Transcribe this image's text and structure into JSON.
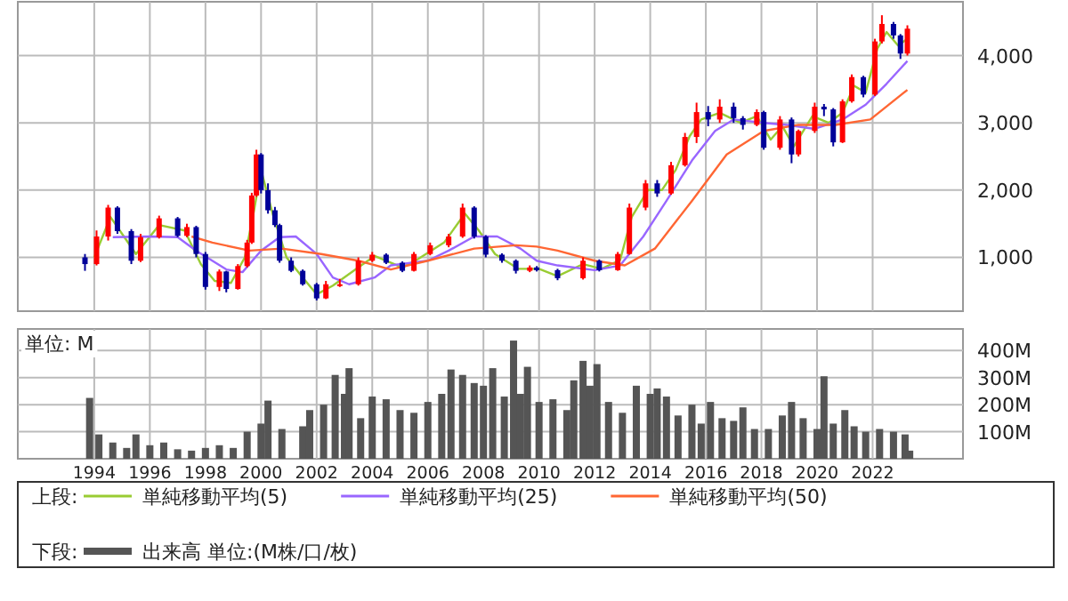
{
  "chart_data": [
    {
      "type": "candlestick",
      "legend_title": "上段:",
      "legend": "bottom",
      "grid": true,
      "tick_labels": "y",
      "xlim": [
        "1991-04",
        "2025-04"
      ],
      "xticks": [
        {
          "value": "1994",
          "label": null
        },
        {
          "value": "1996",
          "label": null
        },
        {
          "value": "1998",
          "label": null
        },
        {
          "value": "2000",
          "label": null
        },
        {
          "value": "2002",
          "label": null
        },
        {
          "value": "2004",
          "label": null
        },
        {
          "value": "2006",
          "label": null
        },
        {
          "value": "2008",
          "label": null
        },
        {
          "value": "2010",
          "label": null
        },
        {
          "value": "2012",
          "label": null
        },
        {
          "value": "2014",
          "label": null
        },
        {
          "value": "2016",
          "label": null
        },
        {
          "value": "2018",
          "label": null
        },
        {
          "value": "2020",
          "label": null
        },
        {
          "value": "2022",
          "label": null
        }
      ],
      "ylim": [
        200,
        4800
      ],
      "yticks": [
        {
          "value": 1000,
          "label": "1,000"
        },
        {
          "value": 2000,
          "label": "2,000"
        },
        {
          "value": 3000,
          "label": "3,000"
        },
        {
          "value": 4000,
          "label": "4,000"
        }
      ],
      "x": [
        "1993-09",
        "1994-02",
        "1994-07",
        "1994-11",
        "1995-05",
        "1995-09",
        "1996-05",
        "1997-01",
        "1997-05",
        "1997-09",
        "1998-01",
        "1998-07",
        "1998-10",
        "1999-03",
        "1999-07",
        "1999-09",
        "1999-11",
        "2000-01",
        "2000-04",
        "2000-07",
        "2000-09",
        "2001-02",
        "2001-07",
        "2002-01",
        "2002-05",
        "2002-11",
        "2003-07",
        "2004-01",
        "2004-07",
        "2005-02",
        "2005-07",
        "2006-02",
        "2006-10",
        "2007-04",
        "2007-09",
        "2008-02",
        "2008-09",
        "2009-03",
        "2009-09",
        "2009-12",
        "2010-09",
        "2011-08",
        "2012-03",
        "2012-11",
        "2013-04",
        "2013-11",
        "2014-04",
        "2014-10",
        "2015-04",
        "2015-09",
        "2016-02",
        "2016-07",
        "2017-01",
        "2017-05",
        "2017-11",
        "2018-02",
        "2018-09",
        "2019-02",
        "2019-05",
        "2019-12",
        "2020-04",
        "2020-08",
        "2020-12",
        "2021-04",
        "2021-09",
        "2022-02",
        "2022-05",
        "2022-10",
        "2023-01",
        "2023-04"
      ],
      "ohlc": [
        [
          1000,
          1050,
          800,
          900
        ],
        [
          900,
          1400,
          880,
          1310
        ],
        [
          1310,
          1780,
          1250,
          1740
        ],
        [
          1740,
          1760,
          1350,
          1390
        ],
        [
          1390,
          1420,
          900,
          950
        ],
        [
          950,
          1350,
          930,
          1300
        ],
        [
          1300,
          1620,
          1280,
          1580
        ],
        [
          1580,
          1600,
          1300,
          1320
        ],
        [
          1320,
          1500,
          1300,
          1450
        ],
        [
          1450,
          1470,
          1000,
          1050
        ],
        [
          1050,
          1080,
          520,
          560
        ],
        [
          560,
          820,
          500,
          790
        ],
        [
          790,
          800,
          480,
          530
        ],
        [
          530,
          900,
          520,
          870
        ],
        [
          870,
          1260,
          850,
          1220
        ],
        [
          1220,
          1960,
          1200,
          1920
        ],
        [
          1920,
          2600,
          1900,
          2530
        ],
        [
          2530,
          2550,
          1950,
          2000
        ],
        [
          2000,
          2100,
          1650,
          1700
        ],
        [
          1700,
          1750,
          1450,
          1480
        ],
        [
          1480,
          1500,
          920,
          950
        ],
        [
          950,
          1000,
          780,
          800
        ],
        [
          800,
          820,
          580,
          600
        ],
        [
          600,
          620,
          360,
          390
        ],
        [
          390,
          650,
          380,
          600
        ],
        [
          600,
          680,
          560,
          600
        ],
        [
          600,
          1000,
          580,
          950
        ],
        [
          950,
          1080,
          930,
          1040
        ],
        [
          1040,
          1060,
          900,
          920
        ],
        [
          920,
          940,
          780,
          800
        ],
        [
          800,
          1080,
          790,
          1050
        ],
        [
          1050,
          1220,
          1030,
          1180
        ],
        [
          1180,
          1350,
          1150,
          1310
        ],
        [
          1310,
          1800,
          1290,
          1740
        ],
        [
          1740,
          1760,
          1280,
          1310
        ],
        [
          1310,
          1330,
          1000,
          1040
        ],
        [
          1040,
          1060,
          920,
          950
        ],
        [
          950,
          970,
          760,
          800
        ],
        [
          800,
          880,
          780,
          850
        ],
        [
          850,
          870,
          790,
          810
        ],
        [
          810,
          830,
          660,
          690
        ],
        [
          690,
          1000,
          670,
          950
        ],
        [
          950,
          970,
          790,
          810
        ],
        [
          810,
          1080,
          800,
          1050
        ],
        [
          1050,
          1800,
          1040,
          1740
        ],
        [
          1740,
          2150,
          1700,
          2100
        ],
        [
          2100,
          2150,
          1900,
          1950
        ],
        [
          1950,
          2420,
          1930,
          2370
        ],
        [
          2370,
          2850,
          2350,
          2790
        ],
        [
          2790,
          3300,
          2700,
          3160
        ],
        [
          3160,
          3250,
          2950,
          3050
        ],
        [
          3050,
          3350,
          3000,
          3240
        ],
        [
          3240,
          3300,
          3000,
          3070
        ],
        [
          3070,
          3100,
          2900,
          2970
        ],
        [
          2970,
          3200,
          2950,
          3160
        ],
        [
          3160,
          3180,
          2600,
          2630
        ],
        [
          2630,
          3100,
          2600,
          3050
        ],
        [
          3050,
          3080,
          2400,
          2530
        ],
        [
          2530,
          2900,
          2500,
          2880
        ],
        [
          2880,
          3300,
          2850,
          3240
        ],
        [
          3240,
          3280,
          3100,
          3200
        ],
        [
          3200,
          3220,
          2650,
          2710
        ],
        [
          2710,
          3350,
          2700,
          3320
        ],
        [
          3320,
          3720,
          3300,
          3680
        ],
        [
          3680,
          3700,
          3380,
          3420
        ],
        [
          3420,
          4250,
          3400,
          4210
        ],
        [
          4210,
          4600,
          4180,
          4470
        ],
        [
          4470,
          4500,
          4250,
          4300
        ],
        [
          4300,
          4320,
          3950,
          4030
        ],
        [
          4030,
          4450,
          4000,
          4400
        ]
      ],
      "series": [
        {
          "type": "line",
          "name": "単純移動平均(5)",
          "color": "#99cc33",
          "x": [
            "1994-01",
            "1994-08",
            "1995-02",
            "1995-07",
            "1996-05",
            "1997-04",
            "1997-11",
            "1998-05",
            "1998-12",
            "1999-06",
            "1999-10",
            "2000-01",
            "2000-06",
            "2000-12",
            "2001-07",
            "2002-01",
            "2002-08",
            "2003-07",
            "2004-02",
            "2005-02",
            "2005-09",
            "2006-08",
            "2007-05",
            "2007-11",
            "2008-06",
            "2009-04",
            "2010-01",
            "2010-09",
            "2011-08",
            "2012-04",
            "2012-12",
            "2013-05",
            "2013-12",
            "2014-06",
            "2014-12",
            "2015-06",
            "2015-11",
            "2016-07",
            "2017-04",
            "2017-11",
            "2018-05",
            "2018-10",
            "2019-03",
            "2019-11",
            "2020-06",
            "2020-12",
            "2021-05",
            "2021-10",
            "2022-03",
            "2022-07",
            "2022-12",
            "2023-04"
          ],
          "values": [
            1000,
            1600,
            1300,
            1050,
            1480,
            1400,
            900,
            650,
            620,
            1000,
            1700,
            2300,
            1650,
            1000,
            700,
            450,
            580,
            850,
            1020,
            850,
            980,
            1220,
            1650,
            1400,
            1050,
            830,
            830,
            720,
            900,
            830,
            960,
            1600,
            2000,
            2000,
            2300,
            2800,
            3050,
            3150,
            3000,
            3100,
            2750,
            2950,
            2650,
            3100,
            3000,
            3150,
            3550,
            3450,
            4100,
            4350,
            4150,
            4250
          ]
        },
        {
          "type": "line",
          "name": "単純移動平均(25)",
          "color": "#9966ff",
          "x": [
            "1994-09",
            "1996-01",
            "1997-01",
            "1997-09",
            "1998-10",
            "1999-05",
            "2000-01",
            "2000-09",
            "2001-04",
            "2002-01",
            "2002-08",
            "2003-03",
            "2004-02",
            "2004-09",
            "2006-01",
            "2006-10",
            "2007-09",
            "2008-07",
            "2009-05",
            "2009-12",
            "2010-09",
            "2012-01",
            "2012-12",
            "2013-10",
            "2014-08",
            "2015-07",
            "2016-05",
            "2017-01",
            "2018-02",
            "2018-12",
            "2019-12",
            "2020-12",
            "2021-10",
            "2022-07",
            "2023-04"
          ],
          "values": [
            1300,
            1310,
            1300,
            1100,
            820,
            780,
            1100,
            1300,
            1310,
            1050,
            700,
            600,
            700,
            880,
            950,
            1100,
            1310,
            1310,
            1130,
            950,
            880,
            810,
            880,
            1310,
            1840,
            2440,
            2880,
            3050,
            3000,
            2970,
            2910,
            3050,
            3270,
            3580,
            3920
          ]
        },
        {
          "type": "line",
          "name": "単純移動平均(50)",
          "color": "#ff6633",
          "x": [
            "1997-07",
            "1998-04",
            "1999-08",
            "2000-10",
            "2002-03",
            "2003-07",
            "2004-09",
            "2006-01",
            "2007-09",
            "2009-03",
            "2009-12",
            "2010-09",
            "2012-01",
            "2013-02",
            "2014-03",
            "2015-07",
            "2016-10",
            "2018-02",
            "2019-05",
            "2020-09",
            "2021-12",
            "2023-04"
          ],
          "values": [
            1310,
            1220,
            1100,
            1130,
            1050,
            950,
            820,
            950,
            1130,
            1180,
            1160,
            1100,
            950,
            880,
            1130,
            1840,
            2530,
            2880,
            2970,
            2970,
            3050,
            3490
          ]
        }
      ]
    },
    {
      "type": "bar",
      "legend_title": "下段:",
      "legend": "bottom",
      "grid": true,
      "ylabel": "単位: M",
      "xlim": [
        "1991-04",
        "2025-04"
      ],
      "xticks": [
        "1994",
        "1996",
        "1998",
        "2000",
        "2002",
        "2004",
        "2006",
        "2008",
        "2010",
        "2012",
        "2014",
        "2016",
        "2018",
        "2020",
        "2022"
      ],
      "ylim": [
        0,
        480
      ],
      "yticks": [
        {
          "value": 100,
          "label": "100M"
        },
        {
          "value": 200,
          "label": "200M"
        },
        {
          "value": 300,
          "label": "300M"
        },
        {
          "value": 400,
          "label": "400M"
        }
      ],
      "series": [
        {
          "name": "出来高 単位:(M株/口/枚)",
          "color": "#555555",
          "x": [
            "1993-11",
            "1994-03",
            "1994-09",
            "1995-03",
            "1995-07",
            "1996-01",
            "1996-07",
            "1997-01",
            "1997-07",
            "1998-01",
            "1998-07",
            "1999-01",
            "1999-07",
            "2000-01",
            "2000-04",
            "2000-10",
            "2001-07",
            "2001-10",
            "2002-04",
            "2002-09",
            "2003-01",
            "2003-03",
            "2003-08",
            "2004-01",
            "2004-07",
            "2005-01",
            "2005-07",
            "2006-01",
            "2006-07",
            "2006-11",
            "2007-04",
            "2007-09",
            "2008-01",
            "2008-05",
            "2008-10",
            "2009-02",
            "2009-05",
            "2009-08",
            "2010-01",
            "2010-07",
            "2011-01",
            "2011-04",
            "2011-08",
            "2011-11",
            "2012-02",
            "2012-07",
            "2013-01",
            "2013-07",
            "2014-01",
            "2014-04",
            "2014-08",
            "2015-01",
            "2015-07",
            "2015-11",
            "2016-03",
            "2016-08",
            "2017-01",
            "2017-05",
            "2017-10",
            "2018-04",
            "2018-10",
            "2019-02",
            "2019-07",
            "2020-01",
            "2020-04",
            "2020-08",
            "2021-01",
            "2021-05",
            "2021-10",
            "2022-04",
            "2022-10",
            "2023-03",
            "2023-05"
          ],
          "values": [
            225,
            90,
            60,
            40,
            90,
            50,
            60,
            35,
            30,
            40,
            50,
            40,
            100,
            130,
            215,
            110,
            120,
            180,
            200,
            310,
            240,
            335,
            150,
            230,
            220,
            180,
            170,
            210,
            240,
            330,
            310,
            280,
            270,
            335,
            230,
            437,
            240,
            340,
            210,
            220,
            180,
            290,
            362,
            270,
            350,
            210,
            170,
            270,
            240,
            260,
            230,
            160,
            200,
            130,
            210,
            150,
            140,
            190,
            110,
            110,
            160,
            210,
            150,
            110,
            305,
            130,
            180,
            120,
            100,
            110,
            100,
            90,
            30
          ]
        }
      ]
    }
  ]
}
